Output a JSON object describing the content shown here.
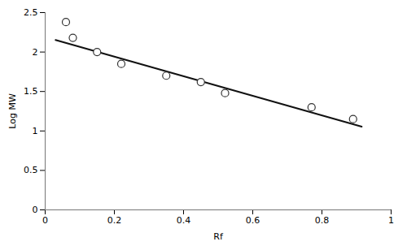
{
  "chart_data": {
    "type": "scatter",
    "xlabel": "Rf",
    "ylabel": "Log MW",
    "xlim": [
      0,
      1
    ],
    "ylim": [
      0,
      2.5
    ],
    "xticks": [
      0,
      0.2,
      0.4,
      0.6,
      0.8,
      1
    ],
    "yticks": [
      0,
      0.5,
      1,
      1.5,
      2,
      2.5
    ],
    "grid": false,
    "series": [
      {
        "type": "line",
        "color": "#111111",
        "line_style": "solid",
        "x": [
          0.03,
          0.915
        ],
        "values": [
          2.1528,
          1.0554
        ]
      },
      {
        "type": "scatter",
        "color": "#333333",
        "marker": "hollow circle",
        "x": [
          0.06,
          0.08,
          0.15,
          0.22,
          0.35,
          0.45,
          0.52,
          0.77,
          0.89
        ],
        "values": [
          2.38,
          2.18,
          2.0,
          1.85,
          1.7,
          1.62,
          1.48,
          1.3,
          1.15
        ]
      }
    ]
  }
}
